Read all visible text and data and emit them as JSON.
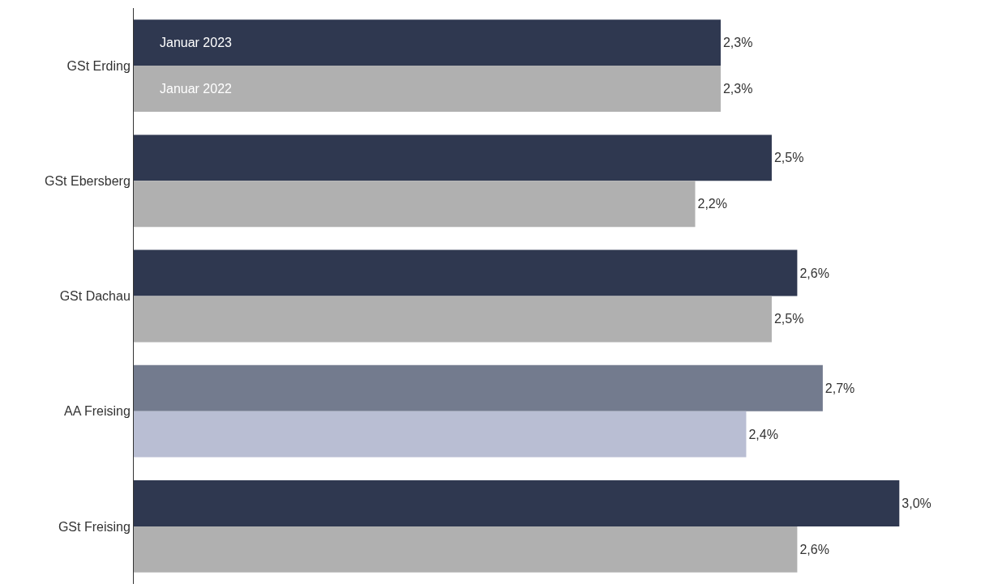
{
  "chart_data": {
    "type": "bar",
    "orientation": "horizontal",
    "legend": false,
    "categories": [
      "GSt Erding",
      "GSt Ebersberg",
      "GSt Dachau",
      "AA Freising",
      "GSt Freising"
    ],
    "series": [
      {
        "name": "Januar 2023",
        "colors": [
          "#2f3850",
          "#2f3850",
          "#2f3850",
          "#737b8e",
          "#2f3850"
        ],
        "values": [
          2.3,
          2.5,
          2.6,
          2.7,
          3.0
        ],
        "value_labels": [
          "2,3%",
          "2,5%",
          "2,6%",
          "2,7%",
          "3,0%"
        ]
      },
      {
        "name": "Januar 2022",
        "colors": [
          "#b0b0b0",
          "#b0b0b0",
          "#b0b0b0",
          "#b9bed3",
          "#b0b0b0"
        ],
        "values": [
          2.3,
          2.2,
          2.5,
          2.4,
          2.6
        ],
        "value_labels": [
          "2,3%",
          "2,2%",
          "2,5%",
          "2,4%",
          "2,6%"
        ]
      }
    ]
  }
}
